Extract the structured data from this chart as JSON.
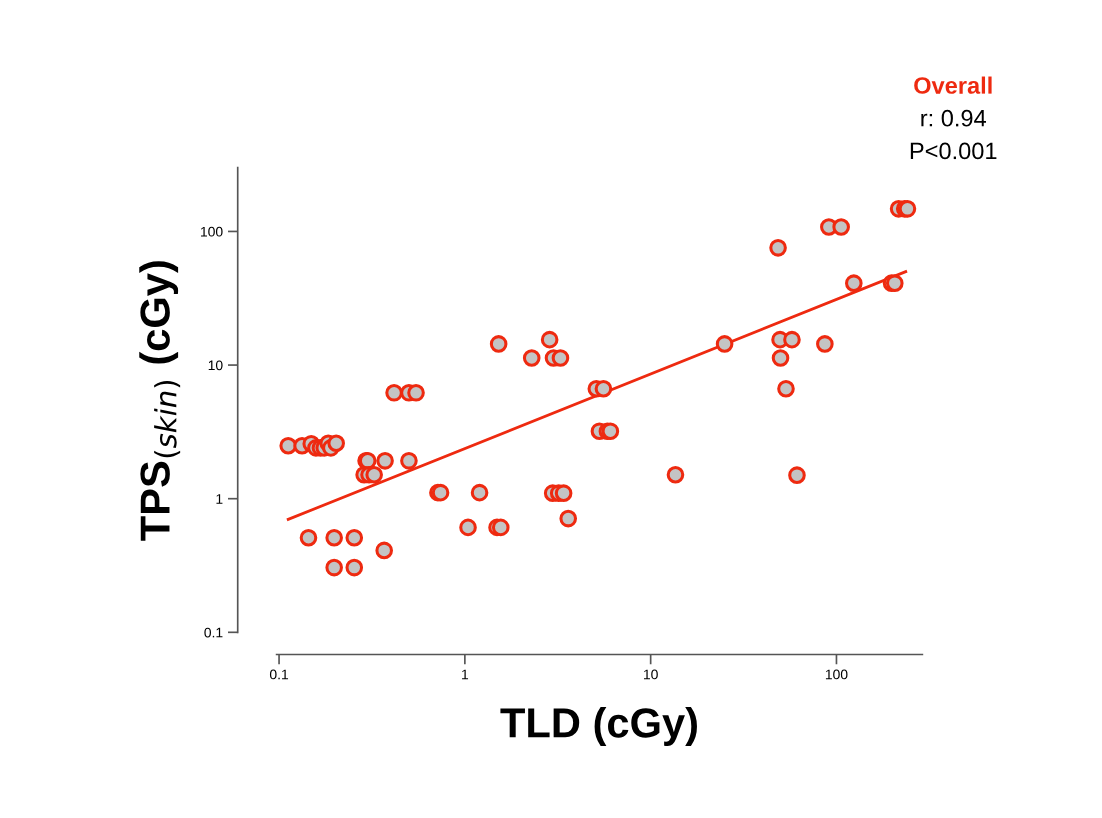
{
  "chart_data": {
    "type": "scatter",
    "xlabel": "TLD (cGy)",
    "ylabel": "TPS$_{(skin)}$ (cGy)",
    "annotations": [
      "Overall",
      "r: 0.94",
      "P<0.001"
    ],
    "log": "xy",
    "grid": false,
    "xlim": [
      0.097,
      290
    ],
    "ylim": [
      0.1,
      300
    ],
    "xticks": [
      0.1,
      1,
      10,
      100
    ],
    "yticks": [
      0.1,
      1,
      10,
      100
    ],
    "series": [
      {
        "color": "#ee2a10",
        "marker": "circle",
        "x": [
          0.112,
          0.133,
          0.149,
          0.158,
          0.167,
          0.175,
          0.184,
          0.19,
          0.203,
          0.294,
          0.3,
          0.372,
          0.5,
          0.287,
          0.305,
          0.325,
          0.416,
          0.5,
          0.546,
          0.144,
          0.198,
          0.254,
          0.198,
          0.254,
          0.368,
          0.716,
          0.74,
          1.2,
          1.04,
          1.49,
          1.56,
          1.52,
          2.29,
          3.0,
          3.27,
          2.86,
          2.97,
          3.2,
          3.4,
          3.6,
          5.1,
          5.57,
          5.3,
          5.85,
          6.07,
          13.6,
          25,
          49.7,
          57.6,
          86.6,
          50,
          53.5,
          61.3,
          48.5,
          91,
          106,
          216,
          233,
          241,
          124,
          198,
          206
        ],
        "values": [
          2.49,
          2.49,
          2.58,
          2.4,
          2.4,
          2.4,
          2.6,
          2.4,
          2.6,
          1.92,
          1.92,
          1.92,
          1.92,
          1.51,
          1.51,
          1.51,
          6.2,
          6.2,
          6.2,
          0.51,
          0.51,
          0.51,
          0.305,
          0.305,
          0.41,
          1.11,
          1.11,
          1.11,
          0.61,
          0.61,
          0.61,
          14.4,
          11.3,
          11.3,
          11.3,
          15.5,
          1.1,
          1.1,
          1.1,
          0.71,
          6.65,
          6.65,
          3.2,
          3.2,
          3.2,
          1.51,
          14.4,
          15.5,
          15.5,
          14.4,
          11.3,
          6.65,
          1.5,
          75.4,
          108,
          108,
          147.6,
          147.6,
          147.6,
          41,
          41,
          41
        ]
      },
      {
        "color": "#ee2a10",
        "type": "line",
        "x": [
          0.112,
          236
        ],
        "values": [
          0.7,
          50
        ]
      }
    ]
  }
}
